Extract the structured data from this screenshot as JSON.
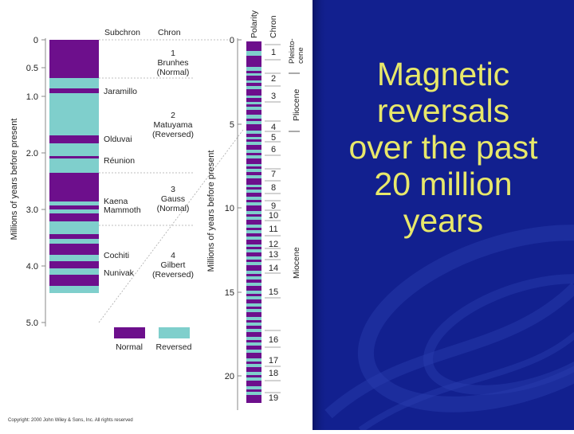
{
  "title": "Magnetic\nreversals\nover the past\n20 million\nyears",
  "copyright": "Copyright: 2000 John Wiley & Sons, Inc. All rights reserved",
  "colors": {
    "normal": "#6d0f8c",
    "reversed": "#7fcfcc",
    "background": "#12208f",
    "title": "#e8e86a"
  },
  "left_chart": {
    "header_subchron": "Subchron",
    "header_chron": "Chron",
    "axis_label": "Millions of years before present",
    "ticks": [
      "0",
      "0.5",
      "1.0",
      "2.0",
      "3.0",
      "4.0",
      "5.0"
    ],
    "subchrons": [
      "Jaramillo",
      "Olduvai",
      "Réunion",
      "Kaena",
      "Mammoth",
      "Cochiti",
      "Nunivak"
    ],
    "chrons": [
      {
        "number": "1",
        "name": "Brunhes",
        "polarity": "(Normal)"
      },
      {
        "number": "2",
        "name": "Matuyama",
        "polarity": "(Reversed)"
      },
      {
        "number": "3",
        "name": "Gauss",
        "polarity": "(Normal)"
      },
      {
        "number": "4",
        "name": "Gilbert",
        "polarity": "(Reversed)"
      }
    ],
    "legend": {
      "normal": "Normal",
      "reversed": "Reversed"
    }
  },
  "right_chart": {
    "axis_label": "Millions of years before present",
    "header_polarity": "Polarity",
    "header_chron": "Chron",
    "ticks": [
      "0",
      "5",
      "10",
      "15",
      "20"
    ],
    "chron_numbers": [
      "1",
      "2",
      "3",
      "4",
      "5",
      "6",
      "7",
      "8",
      "9",
      "10",
      "11",
      "12",
      "13",
      "14",
      "15",
      "16",
      "17",
      "18",
      "19"
    ],
    "epochs": [
      "Pleisto-",
      "cene",
      "Pliocene",
      "Miocene"
    ]
  }
}
